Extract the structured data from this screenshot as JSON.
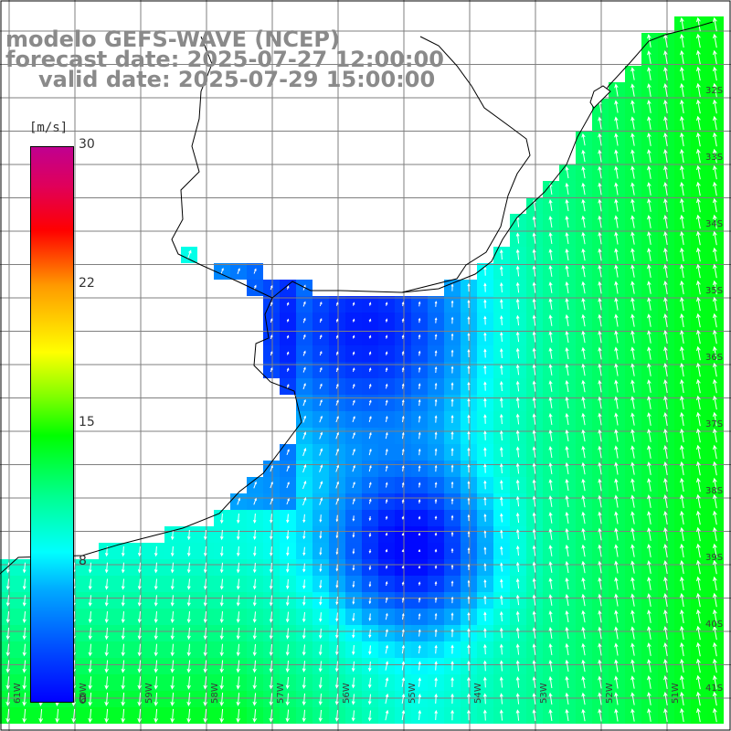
{
  "title": {
    "line1": "modelo GEFS-WAVE (NCEP)",
    "line2": "forecast date: 2025-07-27 12:00:00",
    "line3": "valid date: 2025-07-29 15:00:00"
  },
  "colorbar": {
    "unit": "[m/s]",
    "ticks": [
      "30",
      "22",
      "15",
      "8",
      "0"
    ],
    "tick_values": [
      30,
      22,
      15,
      8,
      0
    ],
    "min": 0,
    "max": 30,
    "colors": [
      "#0000ff",
      "#00ffff",
      "#00ff00",
      "#ffff00",
      "#ff0000",
      "#c00090"
    ]
  },
  "lat_labels": [
    "32S",
    "33S",
    "34S",
    "35S",
    "36S",
    "37S",
    "38S",
    "39S",
    "40S",
    "41S"
  ],
  "lon_labels": [
    "61W",
    "60W",
    "59W",
    "58W",
    "57W",
    "56W",
    "55W",
    "54W",
    "53W",
    "52W",
    "51W"
  ],
  "colors": {
    "land": "#ffffff",
    "coast": "#000000",
    "grid": "#7f7f7f",
    "arrows": "#ffffff",
    "title": "#8a8a8a"
  }
}
